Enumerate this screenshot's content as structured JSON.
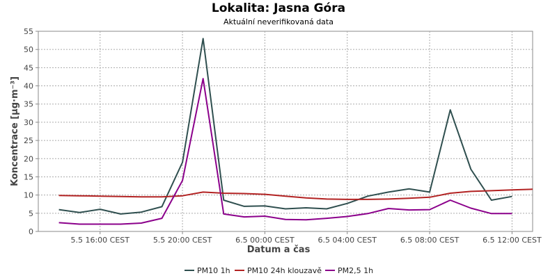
{
  "chart_data": {
    "type": "line",
    "title": "Lokalita: Jasna Góra",
    "subtitle": "Aktuální neverifikovaná data",
    "xlabel": "Datum a čas",
    "ylabel": "Koncentrace [µg·m⁻³]",
    "ylim": [
      0,
      55
    ],
    "yticks": [
      0,
      5,
      10,
      15,
      20,
      25,
      30,
      35,
      40,
      45,
      50,
      55
    ],
    "xlim": [
      "5.5 13:00",
      "6.5 13:00"
    ],
    "xticks": [
      {
        "x": "5.5 16:00",
        "label": "5.5 16:00 CEST"
      },
      {
        "x": "5.5 20:00",
        "label": "5.5 20:00 CEST"
      },
      {
        "x": "6.5 00:00",
        "label": "6.5 00:00 CEST"
      },
      {
        "x": "6.5 04:00",
        "label": "6.5 04:00 CEST"
      },
      {
        "x": "6.5 08:00",
        "label": "6.5 08:00 CEST"
      },
      {
        "x": "6.5 12:00",
        "label": "6.5 12:00 CEST"
      }
    ],
    "grid": true,
    "legend_position": "bottom",
    "series": [
      {
        "name": "PM10 1h",
        "color": "#2f4f4f",
        "x": [
          "5.5 14:00",
          "5.5 15:00",
          "5.5 16:00",
          "5.5 17:00",
          "5.5 18:00",
          "5.5 19:00",
          "5.5 20:00",
          "5.5 21:00",
          "5.5 22:00",
          "5.5 23:00",
          "6.5 00:00",
          "6.5 01:00",
          "6.5 02:00",
          "6.5 03:00",
          "6.5 04:00",
          "6.5 05:00",
          "6.5 06:00",
          "6.5 07:00",
          "6.5 08:00",
          "6.5 09:00",
          "6.5 10:00",
          "6.5 11:00",
          "6.5 12:00"
        ],
        "values": [
          6.0,
          5.2,
          6.1,
          4.8,
          5.3,
          6.8,
          19.0,
          53.0,
          8.6,
          6.9,
          7.0,
          6.2,
          6.5,
          6.2,
          7.7,
          9.7,
          10.8,
          11.7,
          10.8,
          33.4,
          17.1,
          8.6,
          9.6
        ]
      },
      {
        "name": "PM10 24h klouzavě",
        "color": "#b22222",
        "x": [
          "5.5 14:00",
          "5.5 15:00",
          "5.5 16:00",
          "5.5 17:00",
          "5.5 18:00",
          "5.5 19:00",
          "5.5 20:00",
          "5.5 21:00",
          "5.5 22:00",
          "5.5 23:00",
          "6.5 00:00",
          "6.5 01:00",
          "6.5 02:00",
          "6.5 03:00",
          "6.5 04:00",
          "6.5 05:00",
          "6.5 06:00",
          "6.5 07:00",
          "6.5 08:00",
          "6.5 09:00",
          "6.5 10:00",
          "6.5 11:00",
          "6.5 12:00",
          "6.5 13:00"
        ],
        "values": [
          9.9,
          9.8,
          9.7,
          9.6,
          9.5,
          9.5,
          9.8,
          10.8,
          10.5,
          10.4,
          10.2,
          9.7,
          9.2,
          8.9,
          8.8,
          8.8,
          8.9,
          9.1,
          9.4,
          10.5,
          11.0,
          11.2,
          11.4,
          11.6
        ]
      },
      {
        "name": "PM2,5 1h",
        "color": "#8b008b",
        "x": [
          "5.5 14:00",
          "5.5 15:00",
          "5.5 16:00",
          "5.5 17:00",
          "5.5 18:00",
          "5.5 19:00",
          "5.5 20:00",
          "5.5 21:00",
          "5.5 22:00",
          "5.5 23:00",
          "6.5 00:00",
          "6.5 01:00",
          "6.5 02:00",
          "6.5 03:00",
          "6.5 04:00",
          "6.5 05:00",
          "6.5 06:00",
          "6.5 07:00",
          "6.5 08:00",
          "6.5 09:00",
          "6.5 10:00",
          "6.5 11:00",
          "6.5 12:00"
        ],
        "values": [
          2.4,
          2.0,
          2.0,
          2.0,
          2.3,
          3.6,
          14.0,
          42.0,
          4.8,
          4.0,
          4.2,
          3.3,
          3.2,
          3.6,
          4.1,
          4.9,
          6.3,
          5.9,
          6.0,
          8.6,
          6.4,
          4.9,
          4.9
        ]
      }
    ]
  }
}
